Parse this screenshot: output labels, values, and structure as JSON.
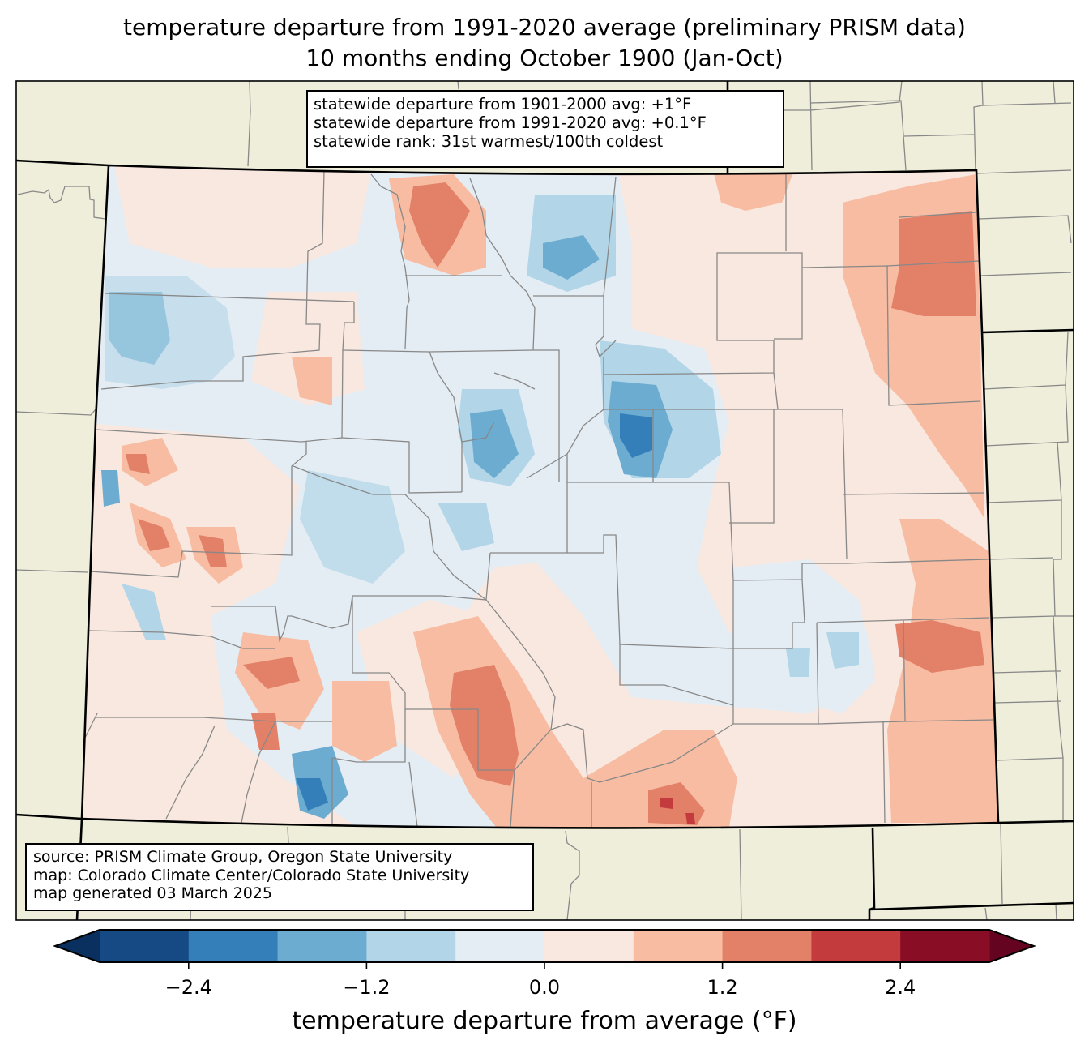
{
  "title": {
    "line1": "temperature departure from 1991-2020 average (preliminary PRISM data)",
    "line2": "10 months ending October 1900 (Jan-Oct)"
  },
  "stats": {
    "line1": "statewide departure from 1901-2000 avg: +1°F",
    "line2": "statewide departure from 1991-2020 avg: +0.1°F",
    "line3": "statewide rank: 31st warmest/100th coldest"
  },
  "source": {
    "line1": "source: PRISM Climate Group, Oregon State University",
    "line2": "map: Colorado Climate Center/Colorado State University",
    "line3": "map generated 03 March 2025"
  },
  "colorbar": {
    "label": "temperature departure from average (°F)",
    "min": -3.0,
    "max": 3.0,
    "step": 0.6,
    "ticks": [
      "−2.4",
      "−1.2",
      "0.0",
      "1.2",
      "2.4"
    ],
    "tick_values": [
      -2.4,
      -1.2,
      0.0,
      1.2,
      2.4
    ],
    "colors": [
      "#164a84",
      "#347fb9",
      "#6bacd0",
      "#b2d5e7",
      "#e5edf4",
      "#f9e8df",
      "#f7bca2",
      "#e38068",
      "#c33b3c",
      "#880d25"
    ],
    "under_color": "#0a305f",
    "over_color": "#650421"
  },
  "map_colors": {
    "land": "#efeedb",
    "ocean_frame": "#ffffff",
    "county_line": "#888888",
    "state_line": "#000000"
  },
  "chart_data": {
    "type": "heatmap",
    "title": "temperature departure from 1991-2020 average (preliminary PRISM data) — 10 months ending October 1900 (Jan-Oct)",
    "region": "Colorado",
    "variable": "temperature departure from average (°F)",
    "levels": [
      -3.0,
      -2.4,
      -1.8,
      -1.2,
      -0.6,
      0.0,
      0.6,
      1.2,
      1.8,
      2.4,
      3.0
    ],
    "zrange": [
      -3.0,
      3.0
    ],
    "statewide_departure_1901_2000": 1,
    "statewide_departure_1991_2020": 0.1,
    "rank_warmest": 31,
    "rank_coldest": 100
  }
}
